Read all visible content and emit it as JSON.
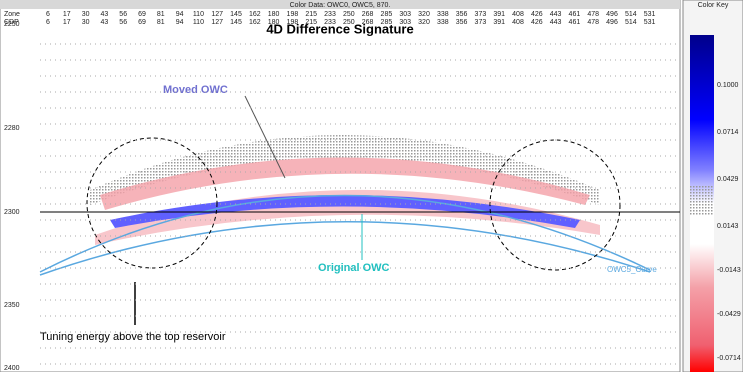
{
  "header": {
    "title": "Color Data: OWC0, OWC5, 870.",
    "row_labels": [
      "Zone",
      "CDP"
    ],
    "rows": [
      [
        6,
        17,
        30,
        43,
        56,
        69,
        81,
        94,
        110,
        127,
        145,
        162,
        180,
        198,
        215,
        233,
        250,
        268,
        285,
        303,
        320,
        338,
        356,
        373,
        391,
        408,
        426,
        443,
        461,
        478,
        496,
        514,
        531
      ],
      [
        6,
        17,
        30,
        43,
        56,
        69,
        81,
        94,
        110,
        127,
        145,
        162,
        180,
        198,
        215,
        233,
        250,
        268,
        285,
        303,
        320,
        338,
        356,
        373,
        391,
        408,
        426,
        443,
        461,
        478,
        496,
        514,
        531
      ]
    ]
  },
  "plot": {
    "title": "4D Difference Signature",
    "y_labels": [
      "2250",
      "2280",
      "2300",
      "2350",
      "2400"
    ],
    "annotations": {
      "moved": "Moved OWC",
      "original": "Original OWC",
      "tuning": "Tuning energy above the top reservoir",
      "curve": "OWC5_Curve"
    }
  },
  "color_key": {
    "title": "Color Key",
    "labels": [
      "0.1000",
      "0.0714",
      "0.0429",
      "0.0143",
      "-0.0143",
      "-0.0429",
      "-0.0714"
    ]
  }
}
